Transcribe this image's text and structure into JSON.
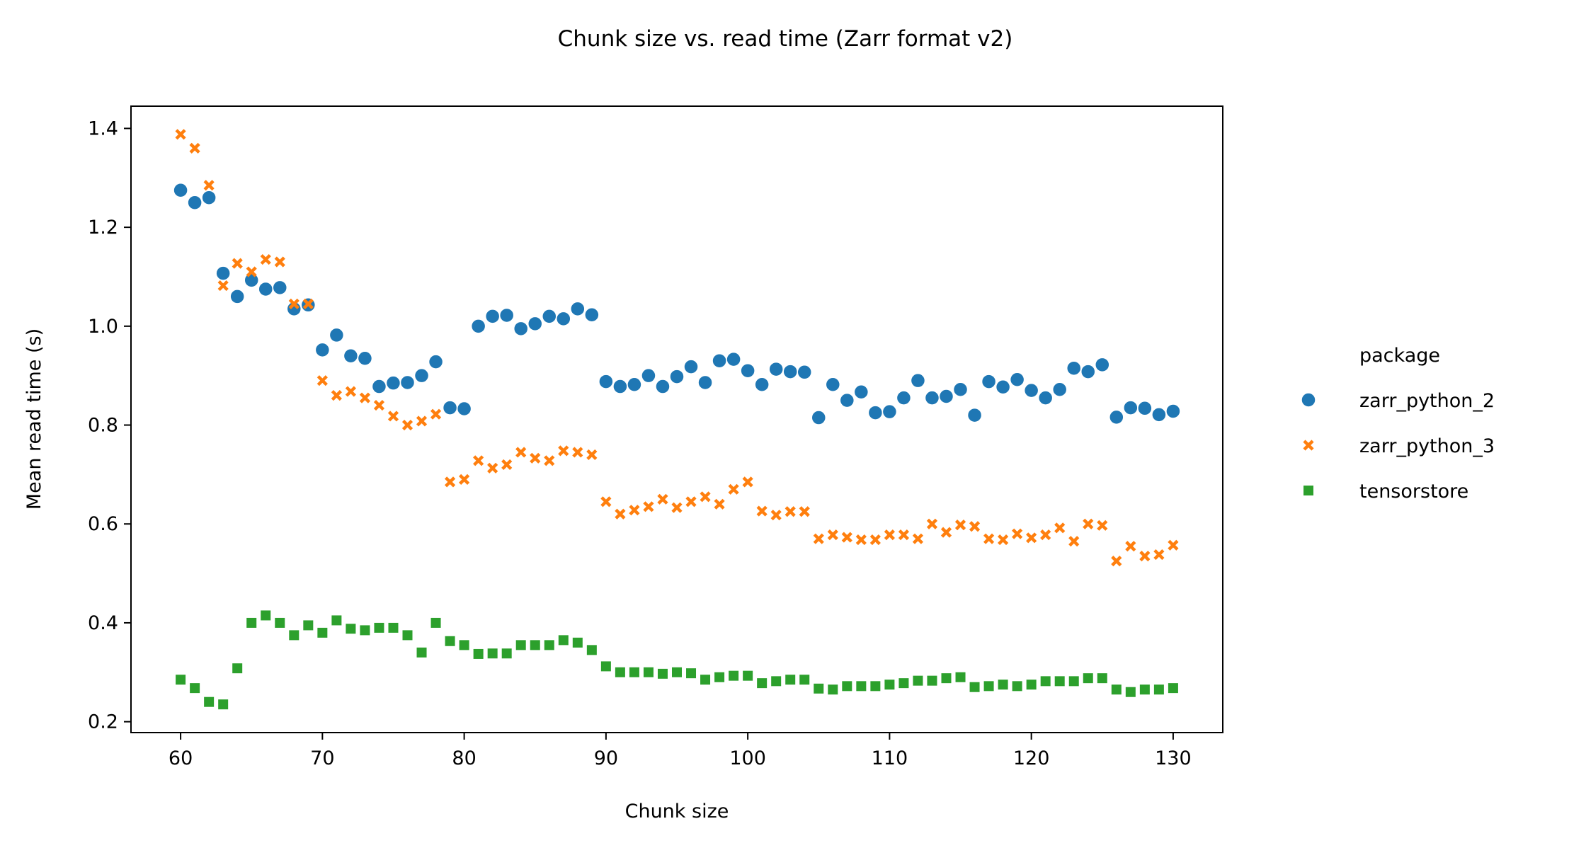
{
  "chart_data": {
    "type": "scatter",
    "title": "Chunk size vs. read time (Zarr format v2)",
    "xlabel": "Chunk size",
    "ylabel": "Mean read time (s)",
    "xlim": [
      56.5,
      133.5
    ],
    "ylim": [
      0.178,
      1.445
    ],
    "xticks": [
      60,
      70,
      80,
      90,
      100,
      110,
      120,
      130
    ],
    "yticks": [
      0.2,
      0.4,
      0.6,
      0.8,
      1.0,
      1.2,
      1.4
    ],
    "ytick_labels": [
      "0.2",
      "0.4",
      "0.6",
      "0.8",
      "1.0",
      "1.2",
      "1.4"
    ],
    "grid": false,
    "legend": {
      "title": "package",
      "placement": "outside-right"
    },
    "x": [
      60,
      61,
      62,
      63,
      64,
      65,
      66,
      67,
      68,
      69,
      70,
      71,
      72,
      73,
      74,
      75,
      76,
      77,
      78,
      79,
      80,
      81,
      82,
      83,
      84,
      85,
      86,
      87,
      88,
      89,
      90,
      91,
      92,
      93,
      94,
      95,
      96,
      97,
      98,
      99,
      100,
      101,
      102,
      103,
      104,
      105,
      106,
      107,
      108,
      109,
      110,
      111,
      112,
      113,
      114,
      115,
      116,
      117,
      118,
      119,
      120,
      121,
      122,
      123,
      124,
      125,
      126,
      127,
      128,
      129,
      130
    ],
    "series": [
      {
        "name": "zarr_python_2",
        "marker": "circle",
        "color": "#1f77b4",
        "values": [
          1.275,
          1.25,
          1.26,
          1.107,
          1.06,
          1.093,
          1.075,
          1.078,
          1.035,
          1.043,
          0.952,
          0.982,
          0.94,
          0.935,
          0.878,
          0.885,
          0.886,
          0.9,
          0.928,
          0.835,
          0.833,
          1.0,
          1.02,
          1.022,
          0.995,
          1.005,
          1.02,
          1.015,
          1.035,
          1.023,
          0.888,
          0.878,
          0.882,
          0.9,
          0.878,
          0.898,
          0.918,
          0.886,
          0.93,
          0.933,
          0.91,
          0.882,
          0.913,
          0.908,
          0.907,
          0.815,
          0.882,
          0.85,
          0.867,
          0.825,
          0.827,
          0.855,
          0.89,
          0.855,
          0.858,
          0.872,
          0.82,
          0.888,
          0.877,
          0.892,
          0.87,
          0.855,
          0.872,
          0.915,
          0.908,
          0.922,
          0.816,
          0.835,
          0.834,
          0.821,
          0.828
        ]
      },
      {
        "name": "zarr_python_3",
        "marker": "x",
        "color": "#ff7f0e",
        "values": [
          1.388,
          1.36,
          1.285,
          1.082,
          1.127,
          1.11,
          1.135,
          1.13,
          1.045,
          1.045,
          0.89,
          0.86,
          0.868,
          0.855,
          0.84,
          0.818,
          0.8,
          0.808,
          0.822,
          0.685,
          0.69,
          0.728,
          0.713,
          0.72,
          0.745,
          0.733,
          0.728,
          0.748,
          0.745,
          0.74,
          0.645,
          0.62,
          0.628,
          0.635,
          0.65,
          0.633,
          0.645,
          0.655,
          0.64,
          0.67,
          0.685,
          0.626,
          0.618,
          0.625,
          0.625,
          0.57,
          0.578,
          0.573,
          0.568,
          0.568,
          0.578,
          0.578,
          0.57,
          0.6,
          0.583,
          0.598,
          0.595,
          0.57,
          0.568,
          0.58,
          0.572,
          0.578,
          0.592,
          0.565,
          0.6,
          0.597,
          0.525,
          0.555,
          0.535,
          0.538,
          0.557
        ]
      },
      {
        "name": "tensorstore",
        "marker": "square",
        "color": "#2ca02c",
        "values": [
          0.285,
          0.268,
          0.24,
          0.235,
          0.308,
          0.4,
          0.415,
          0.4,
          0.375,
          0.395,
          0.38,
          0.405,
          0.388,
          0.385,
          0.39,
          0.39,
          0.375,
          0.34,
          0.4,
          0.363,
          0.355,
          0.337,
          0.338,
          0.338,
          0.355,
          0.355,
          0.355,
          0.365,
          0.36,
          0.345,
          0.312,
          0.3,
          0.3,
          0.3,
          0.297,
          0.3,
          0.298,
          0.285,
          0.29,
          0.293,
          0.293,
          0.278,
          0.282,
          0.285,
          0.285,
          0.267,
          0.265,
          0.272,
          0.272,
          0.272,
          0.275,
          0.278,
          0.283,
          0.283,
          0.288,
          0.29,
          0.27,
          0.272,
          0.275,
          0.272,
          0.275,
          0.282,
          0.282,
          0.282,
          0.288,
          0.288,
          0.265,
          0.26,
          0.265,
          0.265,
          0.268
        ]
      }
    ]
  }
}
